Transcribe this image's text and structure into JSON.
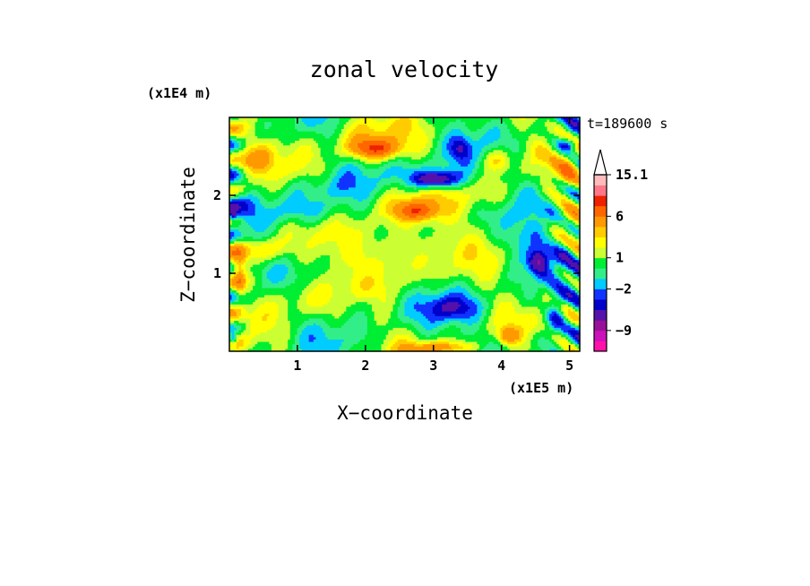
{
  "chart_data": {
    "type": "heatmap",
    "title": "zonal velocity",
    "xlabel": "X−coordinate",
    "ylabel": "Z−coordinate",
    "x_unit": "(x1E5 m)",
    "y_unit": "(x1E4 m)",
    "time_label": "t=189600 s",
    "xlim": [
      0,
      5.15
    ],
    "ylim": [
      0,
      3.0
    ],
    "x_ticks": [
      "1",
      "2",
      "3",
      "4",
      "5"
    ],
    "x_tick_values": [
      1,
      2,
      3,
      4,
      5
    ],
    "y_ticks": [
      "1",
      "2"
    ],
    "y_tick_values": [
      1,
      2
    ],
    "colorbar": {
      "labels": [
        "15.1",
        "6",
        "1",
        "−2",
        "−9"
      ],
      "label_values": [
        15.1,
        6,
        1,
        -2,
        -9
      ],
      "levels": [
        -15,
        -12,
        -9,
        -6,
        -4,
        -3,
        -2,
        -1,
        0,
        1,
        2,
        3,
        4,
        6,
        8,
        10,
        12.5,
        15.1
      ],
      "colors": [
        "#ff11aa",
        "#cc11bb",
        "#991199",
        "#5511aa",
        "#0000cc",
        "#1133ff",
        "#00ccff",
        "#33ee88",
        "#00ee33",
        "#ccff33",
        "#ffff00",
        "#ffcc00",
        "#ff9900",
        "#ff6600",
        "#ee2200",
        "#ff7788",
        "#ffbbbb"
      ],
      "extend_max": true
    },
    "features": [
      {
        "x": 2.15,
        "z": 2.6,
        "sx": 0.35,
        "sz": 0.12,
        "v": 6
      },
      {
        "x": 1.9,
        "z": 2.75,
        "sx": 0.6,
        "sz": 0.3,
        "v": 2
      },
      {
        "x": 2.75,
        "z": 1.8,
        "sx": 0.3,
        "sz": 0.12,
        "v": 5
      },
      {
        "x": 2.6,
        "z": 1.85,
        "sx": 0.55,
        "sz": 0.25,
        "v": 2
      },
      {
        "x": 3.05,
        "z": 2.2,
        "sx": 0.3,
        "sz": 0.1,
        "v": -6
      },
      {
        "x": 2.95,
        "z": 2.25,
        "sx": 0.55,
        "sz": 0.2,
        "v": -2.5
      },
      {
        "x": 3.4,
        "z": 2.6,
        "sx": 0.15,
        "sz": 0.15,
        "v": -3
      },
      {
        "x": 3.95,
        "z": 2.45,
        "sx": 0.2,
        "sz": 0.15,
        "v": 3
      },
      {
        "x": 4.55,
        "z": 1.15,
        "sx": 0.15,
        "sz": 0.15,
        "v": -6
      },
      {
        "x": 4.35,
        "z": 1.4,
        "sx": 0.3,
        "sz": 0.25,
        "v": -2.5
      },
      {
        "x": 5.0,
        "z": 2.65,
        "sx": 0.15,
        "sz": 0.08,
        "v": -4
      },
      {
        "x": 5.0,
        "z": 2.3,
        "sx": 0.15,
        "sz": 0.2,
        "v": 3
      },
      {
        "x": 1.2,
        "z": 1.8,
        "sx": 0.6,
        "sz": 0.2,
        "v": -2.5
      },
      {
        "x": 1.3,
        "z": 2.1,
        "sx": 0.6,
        "sz": 0.15,
        "v": -1
      },
      {
        "x": 3.3,
        "z": 0.55,
        "sx": 0.35,
        "sz": 0.15,
        "v": -2.5
      },
      {
        "x": 3.0,
        "z": 0.6,
        "sx": 0.7,
        "sz": 0.3,
        "v": -1
      },
      {
        "x": 1.0,
        "z": 0.7,
        "sx": 0.5,
        "sz": 0.25,
        "v": 2
      },
      {
        "x": 1.9,
        "z": 0.6,
        "sx": 0.3,
        "sz": 0.15,
        "v": -1
      },
      {
        "x": 3.1,
        "z": 0.05,
        "sx": 0.5,
        "sz": 0.08,
        "v": 4
      },
      {
        "x": 0.5,
        "z": 1.3,
        "sx": 0.3,
        "sz": 0.15,
        "v": 3
      },
      {
        "x": 0.4,
        "z": 2.5,
        "sx": 0.3,
        "sz": 0.2,
        "v": 3
      },
      {
        "x": 0.15,
        "z": 1.0,
        "sx": 0.1,
        "sz": 0.3,
        "v": 4
      },
      {
        "x": 0.05,
        "z": 1.75,
        "sx": 0.06,
        "sz": 0.08,
        "v": -4
      },
      {
        "x": 0.05,
        "z": 0.15,
        "sx": 0.06,
        "sz": 0.08,
        "v": -5
      },
      {
        "x": 4.1,
        "z": 0.2,
        "sx": 0.15,
        "sz": 0.1,
        "v": 4
      },
      {
        "x": 4.8,
        "z": 0.5,
        "sx": 0.15,
        "sz": 0.3,
        "v": -3
      },
      {
        "x": 3.8,
        "z": 2.0,
        "sx": 0.3,
        "sz": 0.2,
        "v": 2
      }
    ]
  }
}
